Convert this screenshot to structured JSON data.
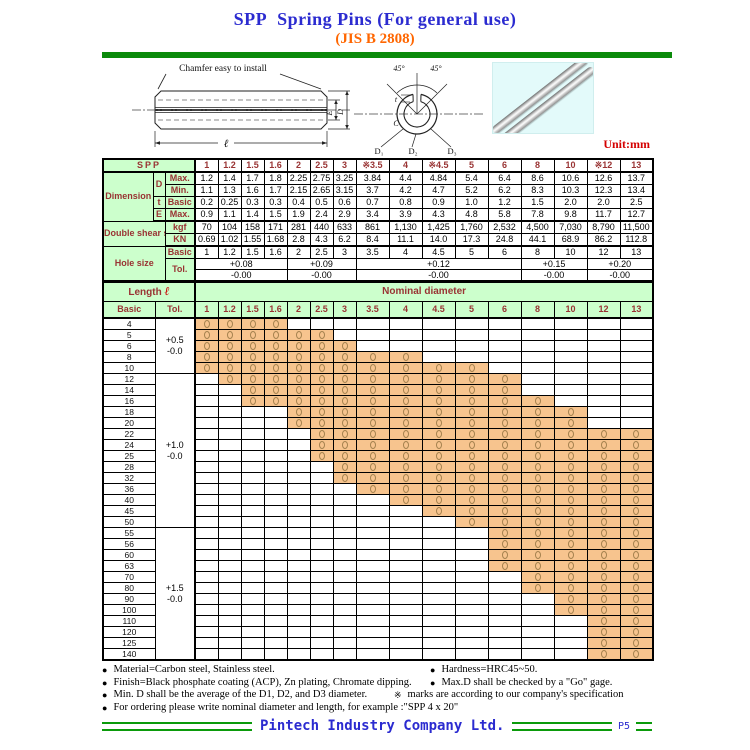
{
  "title": {
    "main": "SPP  Spring Pins (For general use)",
    "sub": "(JIS B 2808)"
  },
  "unit_label": "Unit:mm",
  "drawing": {
    "chamfer_note": "Chamfer easy to install",
    "labels": {
      "e": "E",
      "d": "D",
      "l": "ℓ",
      "angle_left": "45°",
      "angle_right": "45°",
      "t": "t",
      "c": "C",
      "d1": "D₁",
      "d2": "D₂",
      "d3": "D₃"
    }
  },
  "spec_table": {
    "corner": "SPP",
    "sizes": [
      "1",
      "1.2",
      "1.5",
      "1.6",
      "2",
      "2.5",
      "3",
      "※3.5",
      "4",
      "※4.5",
      "5",
      "6",
      "8",
      "10",
      "※12",
      "13"
    ],
    "dimension_label": "Dimension",
    "sub_rows": [
      {
        "group": "D",
        "name": "Max.",
        "values": [
          "1.2",
          "1.4",
          "1.7",
          "1.8",
          "2.25",
          "2.75",
          "3.25",
          "3.84",
          "4.4",
          "4.84",
          "5.4",
          "6.4",
          "8.6",
          "10.6",
          "12.6",
          "13.7"
        ]
      },
      {
        "group": "D",
        "name": "Min.",
        "values": [
          "1.1",
          "1.3",
          "1.6",
          "1.7",
          "2.15",
          "2.65",
          "3.15",
          "3.7",
          "4.2",
          "4.7",
          "5.2",
          "6.2",
          "8.3",
          "10.3",
          "12.3",
          "13.4"
        ]
      },
      {
        "group": "t",
        "name": "Basic",
        "values": [
          "0.2",
          "0.25",
          "0.3",
          "0.3",
          "0.4",
          "0.5",
          "0.6",
          "0.7",
          "0.8",
          "0.9",
          "1.0",
          "1.2",
          "1.5",
          "2.0",
          "2.0",
          "2.5"
        ]
      },
      {
        "group": "E",
        "name": "Max.",
        "values": [
          "0.9",
          "1.1",
          "1.4",
          "1.5",
          "1.9",
          "2.4",
          "2.9",
          "3.4",
          "3.9",
          "4.3",
          "4.8",
          "5.8",
          "7.8",
          "9.8",
          "11.7",
          "12.7"
        ]
      }
    ],
    "shear": {
      "label": "Double shear strength",
      "rows": [
        {
          "name": "kgf",
          "values": [
            "70",
            "104",
            "158",
            "171",
            "281",
            "440",
            "633",
            "861",
            "1,130",
            "1,425",
            "1,760",
            "2,532",
            "4,500",
            "7,030",
            "8,790",
            "11,500"
          ]
        },
        {
          "name": "KN",
          "values": [
            "0.69",
            "1.02",
            "1.55",
            "1.68",
            "2.8",
            "4.3",
            "6.2",
            "8.4",
            "11.1",
            "14.0",
            "17.3",
            "24.8",
            "44.1",
            "68.9",
            "86.2",
            "112.8"
          ]
        }
      ]
    },
    "hole": {
      "label": "Hole size",
      "basic_name": "Basic",
      "tol_name": "Tol.",
      "basic_values": [
        "1",
        "1.2",
        "1.5",
        "1.6",
        "2",
        "2.5",
        "3",
        "3.5",
        "4",
        "4.5",
        "5",
        "6",
        "8",
        "10",
        "12",
        "13"
      ],
      "tol_groups": [
        {
          "plus": "+0.08",
          "minus": "-0.00",
          "span": 4
        },
        {
          "plus": "+0.09",
          "minus": "-0.00",
          "span": 3
        },
        {
          "plus": "+0.12",
          "minus": "-0.00",
          "span": 5
        },
        {
          "plus": "+0.15",
          "minus": "-0.00",
          "span": 2
        },
        {
          "plus": "+0.20",
          "minus": "-0.00",
          "span": 2
        }
      ]
    }
  },
  "length_table": {
    "length_label": "Length",
    "length_symbol": "ℓ",
    "nominal_header": "Nominal diameter",
    "basic_header": "Basic",
    "tol_header": "Tol.",
    "diameters": [
      "1",
      "1.2",
      "1.5",
      "1.6",
      "2",
      "2.5",
      "3",
      "3.5",
      "4",
      "4.5",
      "5",
      "6",
      "8",
      "10",
      "12",
      "13"
    ],
    "tol_groups": [
      {
        "plus": "+0.5",
        "minus": "-0.0",
        "rows": 5
      },
      {
        "plus": "+1.0",
        "minus": "-0.0",
        "rows": 14
      },
      {
        "plus": "+1.5",
        "minus": "-0.0",
        "rows": 12
      }
    ],
    "rows": [
      {
        "len": "4",
        "from": 0,
        "to": 3
      },
      {
        "len": "5",
        "from": 0,
        "to": 5
      },
      {
        "len": "6",
        "from": 0,
        "to": 6
      },
      {
        "len": "8",
        "from": 0,
        "to": 8
      },
      {
        "len": "10",
        "from": 0,
        "to": 10
      },
      {
        "len": "12",
        "from": 1,
        "to": 11
      },
      {
        "len": "14",
        "from": 2,
        "to": 11
      },
      {
        "len": "16",
        "from": 2,
        "to": 12
      },
      {
        "len": "18",
        "from": 4,
        "to": 13
      },
      {
        "len": "20",
        "from": 4,
        "to": 13
      },
      {
        "len": "22",
        "from": 5,
        "to": 15
      },
      {
        "len": "24",
        "from": 5,
        "to": 15
      },
      {
        "len": "25",
        "from": 5,
        "to": 15
      },
      {
        "len": "28",
        "from": 6,
        "to": 15
      },
      {
        "len": "32",
        "from": 6,
        "to": 15
      },
      {
        "len": "36",
        "from": 7,
        "to": 15
      },
      {
        "len": "40",
        "from": 8,
        "to": 15
      },
      {
        "len": "45",
        "from": 9,
        "to": 15
      },
      {
        "len": "50",
        "from": 10,
        "to": 15
      },
      {
        "len": "55",
        "from": 11,
        "to": 15
      },
      {
        "len": "56",
        "from": 11,
        "to": 15
      },
      {
        "len": "60",
        "from": 11,
        "to": 15
      },
      {
        "len": "63",
        "from": 11,
        "to": 15
      },
      {
        "len": "70",
        "from": 12,
        "to": 15
      },
      {
        "len": "80",
        "from": 12,
        "to": 15
      },
      {
        "len": "90",
        "from": 13,
        "to": 15
      },
      {
        "len": "100",
        "from": 13,
        "to": 15
      },
      {
        "len": "110",
        "from": 14,
        "to": 15
      },
      {
        "len": "120",
        "from": 14,
        "to": 15
      },
      {
        "len": "125",
        "from": 14,
        "to": 15
      },
      {
        "len": "140",
        "from": 14,
        "to": 15
      }
    ]
  },
  "notes": [
    {
      "left_bullet": "●",
      "left": "Material=Carbon steel, Stainless steel.",
      "right_bullet": "●",
      "right": "Hardness=HRC45~50."
    },
    {
      "left_bullet": "●",
      "left": "Finish=Black phosphate coating (ACP), Zn plating, Chromate dipping.",
      "right_bullet": "●",
      "right": "Max.D shall be checked by a \"Go\" gage."
    },
    {
      "left_bullet": "●",
      "left": "Min. D shall be the average of the D1, D2, and D3 diameter.",
      "right_bullet": "※",
      "right": "marks are according to our company's specification"
    },
    {
      "left_bullet": "●",
      "left": "For ordering please write nominal diameter and length, for example :\"SPP 4 x 20\"",
      "right_bullet": "",
      "right": ""
    }
  ],
  "footer": {
    "company": "Pintech Industry Company Ltd.",
    "page": "P5"
  },
  "colors": {
    "green_bar": "#0b8a0b",
    "header_bg": "#ccffcc",
    "label_text": "#993333",
    "cell_orange": "#f7c48e",
    "title_blue": "#2b2bd0",
    "title_orange": "#ff6600",
    "unit_red": "#d40000",
    "footer_blue": "#2b2bd0"
  }
}
